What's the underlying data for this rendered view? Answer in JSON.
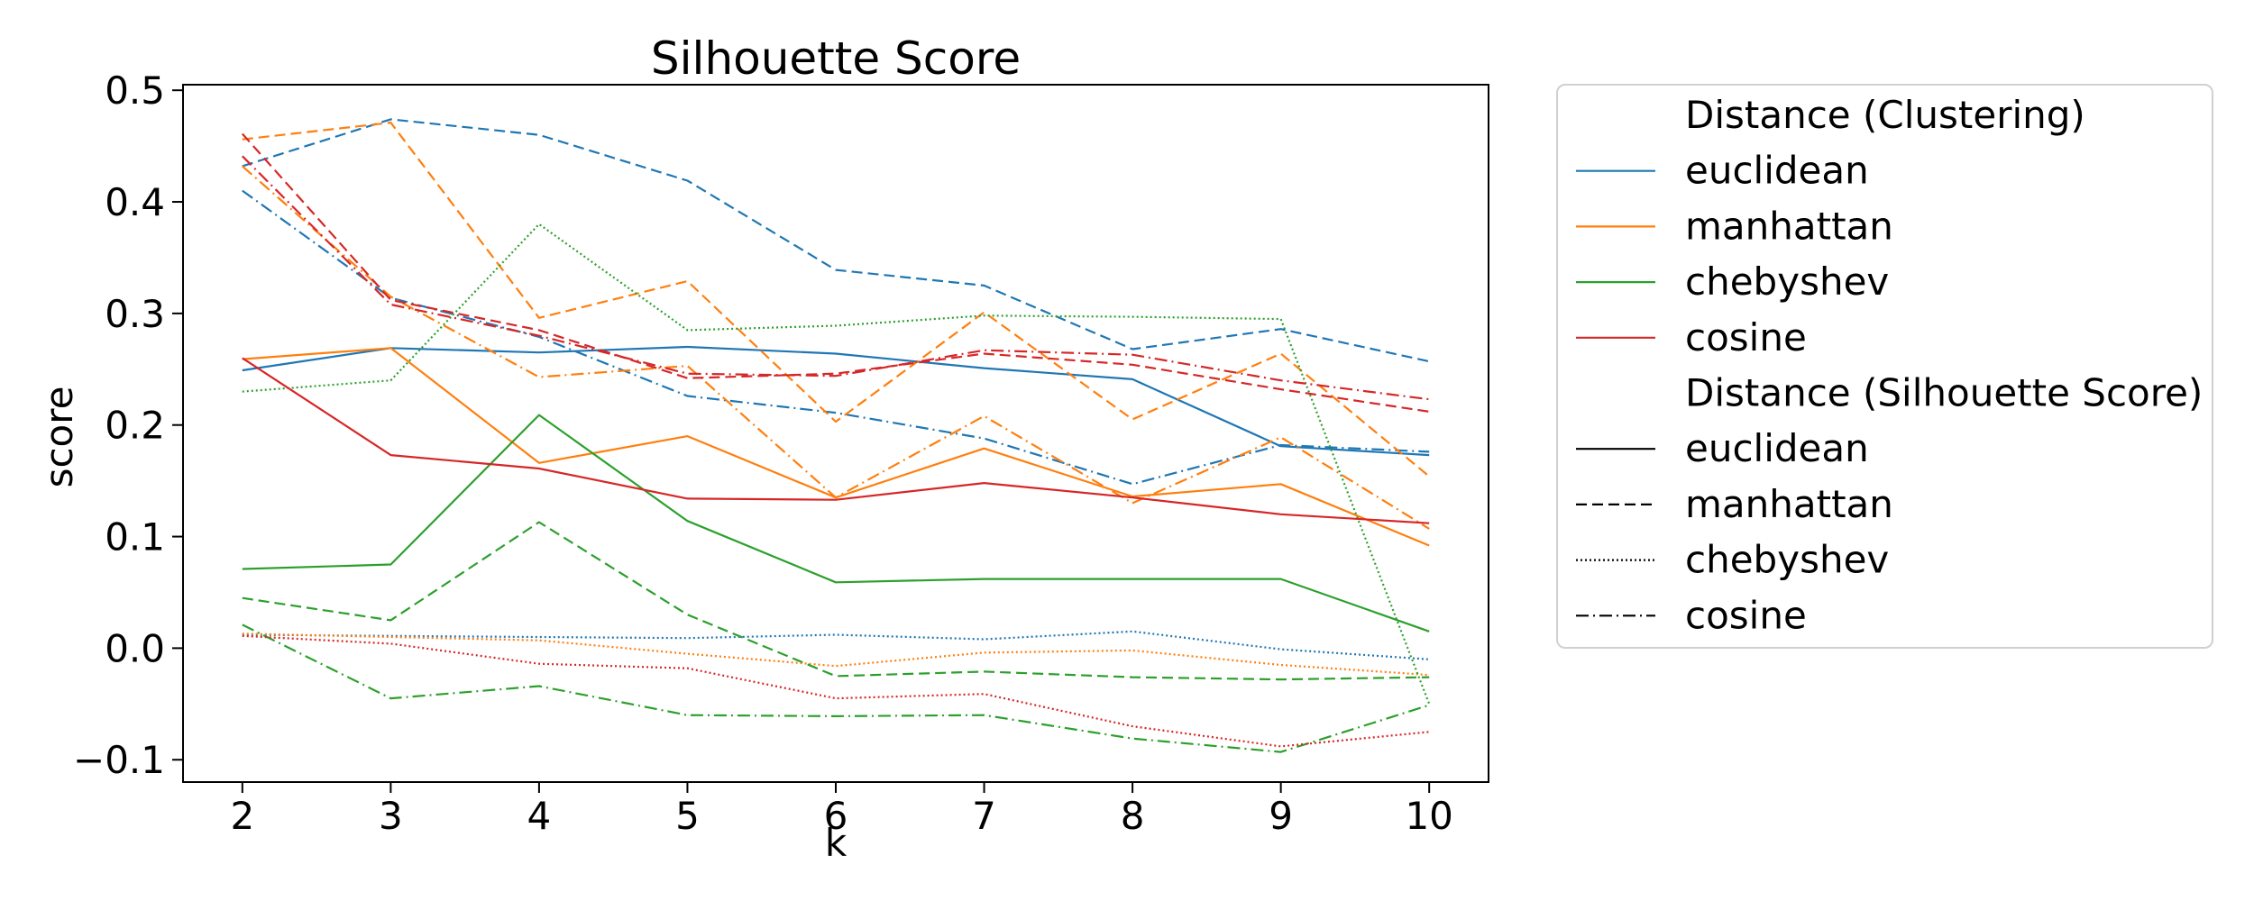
{
  "colors": {
    "euclidean": "#1f77b4",
    "manhattan": "#ff7f0e",
    "chebyshev": "#2ca02c",
    "cosine": "#d62728",
    "neutral": "#000000"
  },
  "chart_data": {
    "type": "line",
    "title": "Silhouette Score",
    "xlabel": "k",
    "ylabel": "score",
    "x": [
      2,
      3,
      4,
      5,
      6,
      7,
      8,
      9,
      10
    ],
    "xlim": [
      1.6,
      10.4
    ],
    "ylim": [
      -0.12,
      0.505
    ],
    "xticks": [
      "2",
      "3",
      "4",
      "5",
      "6",
      "7",
      "8",
      "9",
      "10"
    ],
    "yticks": [
      {
        "value": 0.5,
        "label": "0.5"
      },
      {
        "value": 0.4,
        "label": "0.4"
      },
      {
        "value": 0.3,
        "label": "0.3"
      },
      {
        "value": 0.2,
        "label": "0.2"
      },
      {
        "value": 0.1,
        "label": "0.1"
      },
      {
        "value": 0.0,
        "label": "0.0"
      },
      {
        "value": -0.1,
        "label": "−0.1"
      }
    ],
    "grid": false,
    "legend": {
      "placement": "outside-right",
      "groups": [
        {
          "title": "Distance (Clustering)",
          "kind": "color",
          "entries": [
            "euclidean",
            "manhattan",
            "chebyshev",
            "cosine"
          ]
        },
        {
          "title": "Distance (Silhouette Score)",
          "kind": "dash",
          "entries": [
            "euclidean",
            "manhattan",
            "chebyshev",
            "cosine"
          ]
        }
      ]
    },
    "series": [
      {
        "clustering": "euclidean",
        "silhouette": "euclidean",
        "values": [
          0.249,
          0.269,
          0.265,
          0.27,
          0.264,
          0.251,
          0.241,
          0.181,
          0.173
        ]
      },
      {
        "clustering": "euclidean",
        "silhouette": "manhattan",
        "values": [
          0.432,
          0.474,
          0.46,
          0.419,
          0.339,
          0.325,
          0.268,
          0.286,
          0.257
        ]
      },
      {
        "clustering": "euclidean",
        "silhouette": "chebyshev",
        "values": [
          0.012,
          0.011,
          0.01,
          0.009,
          0.012,
          0.008,
          0.015,
          -0.001,
          -0.01
        ]
      },
      {
        "clustering": "euclidean",
        "silhouette": "cosine",
        "values": [
          0.41,
          0.314,
          0.279,
          0.226,
          0.211,
          0.188,
          0.147,
          0.182,
          0.176
        ]
      },
      {
        "clustering": "manhattan",
        "silhouette": "euclidean",
        "values": [
          0.259,
          0.269,
          0.166,
          0.19,
          0.135,
          0.179,
          0.136,
          0.147,
          0.092
        ]
      },
      {
        "clustering": "manhattan",
        "silhouette": "manhattan",
        "values": [
          0.456,
          0.471,
          0.296,
          0.329,
          0.203,
          0.301,
          0.205,
          0.264,
          0.154
        ]
      },
      {
        "clustering": "manhattan",
        "silhouette": "chebyshev",
        "values": [
          0.013,
          0.01,
          0.007,
          -0.005,
          -0.016,
          -0.004,
          -0.002,
          -0.015,
          -0.024
        ]
      },
      {
        "clustering": "manhattan",
        "silhouette": "cosine",
        "values": [
          0.432,
          0.315,
          0.243,
          0.253,
          0.135,
          0.208,
          0.13,
          0.189,
          0.107
        ]
      },
      {
        "clustering": "chebyshev",
        "silhouette": "euclidean",
        "values": [
          0.071,
          0.075,
          0.209,
          0.114,
          0.059,
          0.062,
          0.062,
          0.062,
          0.015
        ]
      },
      {
        "clustering": "chebyshev",
        "silhouette": "manhattan",
        "values": [
          0.045,
          0.025,
          0.113,
          0.03,
          -0.025,
          -0.021,
          -0.026,
          -0.028,
          -0.026
        ]
      },
      {
        "clustering": "chebyshev",
        "silhouette": "chebyshev",
        "values": [
          0.23,
          0.24,
          0.38,
          0.285,
          0.289,
          0.298,
          0.297,
          0.295,
          -0.05
        ]
      },
      {
        "clustering": "chebyshev",
        "silhouette": "cosine",
        "values": [
          0.021,
          -0.045,
          -0.034,
          -0.06,
          -0.061,
          -0.06,
          -0.081,
          -0.093,
          -0.051
        ]
      },
      {
        "clustering": "cosine",
        "silhouette": "euclidean",
        "values": [
          0.26,
          0.173,
          0.161,
          0.134,
          0.133,
          0.148,
          0.135,
          0.12,
          0.112
        ]
      },
      {
        "clustering": "cosine",
        "silhouette": "manhattan",
        "values": [
          0.461,
          0.312,
          0.285,
          0.242,
          0.246,
          0.264,
          0.254,
          0.232,
          0.212
        ]
      },
      {
        "clustering": "cosine",
        "silhouette": "chebyshev",
        "values": [
          0.011,
          0.004,
          -0.014,
          -0.018,
          -0.045,
          -0.041,
          -0.07,
          -0.088,
          -0.075
        ]
      },
      {
        "clustering": "cosine",
        "silhouette": "cosine",
        "values": [
          0.441,
          0.308,
          0.28,
          0.246,
          0.244,
          0.267,
          0.263,
          0.24,
          0.223
        ]
      }
    ]
  }
}
